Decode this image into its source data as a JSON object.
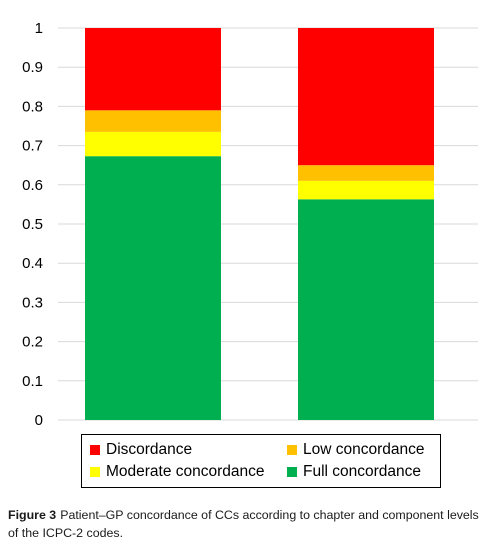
{
  "chart_data": {
    "type": "bar",
    "stacked": true,
    "categories": [
      "",
      ""
    ],
    "series": [
      {
        "name": "Full concordance",
        "color": "#00b050",
        "values": [
          0.673,
          0.563
        ]
      },
      {
        "name": "Moderate concordance",
        "color": "#ffff00",
        "values": [
          0.062,
          0.047
        ]
      },
      {
        "name": "Low concordance",
        "color": "#ffc000",
        "values": [
          0.055,
          0.04
        ]
      },
      {
        "name": "Discordance",
        "color": "#ff0000",
        "values": [
          0.21,
          0.35
        ]
      }
    ],
    "yticks": [
      "0",
      "0.1",
      "0.2",
      "0.3",
      "0.4",
      "0.5",
      "0.6",
      "0.7",
      "0.8",
      "0.9",
      "1"
    ],
    "ylim": [
      0,
      1
    ],
    "grid": true,
    "legend_position": "bottom",
    "title": "",
    "xlabel": "",
    "ylabel": ""
  },
  "legend": [
    {
      "label": "Discordance",
      "color": "#ff0000"
    },
    {
      "label": "Low concordance",
      "color": "#ffc000"
    },
    {
      "label": "Moderate concordance",
      "color": "#ffff00"
    },
    {
      "label": "Full concordance",
      "color": "#00b050"
    }
  ],
  "caption": {
    "label": "Figure 3",
    "text": "Patient–GP concordance of CCs according to chapter and component levels of the ICPC-2 codes."
  }
}
